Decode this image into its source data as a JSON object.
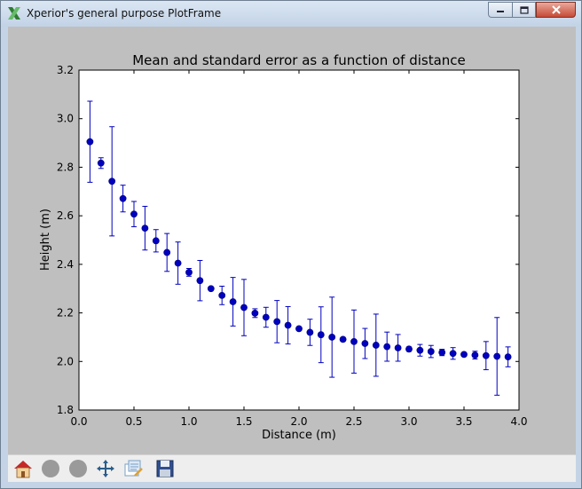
{
  "window": {
    "title": "Xperior's general purpose PlotFrame",
    "controls": [
      "minimize-icon",
      "maximize-icon",
      "close-icon"
    ]
  },
  "toolbar": {
    "buttons": [
      "home-icon",
      "back-icon",
      "forward-icon",
      "pan-icon",
      "zoom-rect-icon",
      "save-icon"
    ]
  },
  "colors": {
    "marker": "#0000bf",
    "plot_bg": "#ffffff",
    "frame_bg": "#bfbfbf"
  },
  "chart_data": {
    "type": "scatter",
    "title": "Mean and standard error as a function of distance",
    "xlabel": "Distance (m)",
    "ylabel": "Height (m)",
    "xlim": [
      0.0,
      4.0
    ],
    "ylim": [
      1.8,
      3.2
    ],
    "xticks": [
      "0.0",
      "0.5",
      "1.0",
      "1.5",
      "2.0",
      "2.5",
      "3.0",
      "3.5",
      "4.0"
    ],
    "yticks": [
      "1.8",
      "2.0",
      "2.2",
      "2.4",
      "2.6",
      "2.8",
      "3.0",
      "3.2"
    ],
    "grid": false,
    "series": [
      {
        "x": [
          0.1,
          0.2,
          0.3,
          0.4,
          0.5,
          0.6,
          0.7,
          0.8,
          0.9,
          1.0,
          1.1,
          1.2,
          1.3,
          1.4,
          1.5,
          1.6,
          1.7,
          1.8,
          1.9,
          2.0,
          2.1,
          2.2,
          2.3,
          2.4,
          2.5,
          2.6,
          2.7,
          2.8,
          2.9,
          3.0,
          3.1,
          3.2,
          3.3,
          3.4,
          3.5,
          3.6,
          3.7,
          3.8,
          3.9
        ],
        "y": [
          2.905,
          2.817,
          2.742,
          2.671,
          2.607,
          2.549,
          2.497,
          2.449,
          2.405,
          2.367,
          2.333,
          2.3,
          2.272,
          2.246,
          2.222,
          2.199,
          2.182,
          2.164,
          2.149,
          2.135,
          2.12,
          2.11,
          2.1,
          2.091,
          2.082,
          2.074,
          2.067,
          2.061,
          2.056,
          2.051,
          2.046,
          2.041,
          2.037,
          2.033,
          2.029,
          2.026,
          2.024,
          2.021,
          2.019
        ],
        "err": [
          0.167,
          0.022,
          0.225,
          0.055,
          0.052,
          0.09,
          0.046,
          0.078,
          0.087,
          0.016,
          0.083,
          0.0,
          0.038,
          0.1,
          0.116,
          0.018,
          0.041,
          0.087,
          0.077,
          0.0,
          0.054,
          0.115,
          0.165,
          0.0,
          0.13,
          0.062,
          0.128,
          0.06,
          0.055,
          0.009,
          0.024,
          0.025,
          0.013,
          0.024,
          0.0,
          0.016,
          0.058,
          0.16,
          0.041
        ]
      }
    ]
  }
}
